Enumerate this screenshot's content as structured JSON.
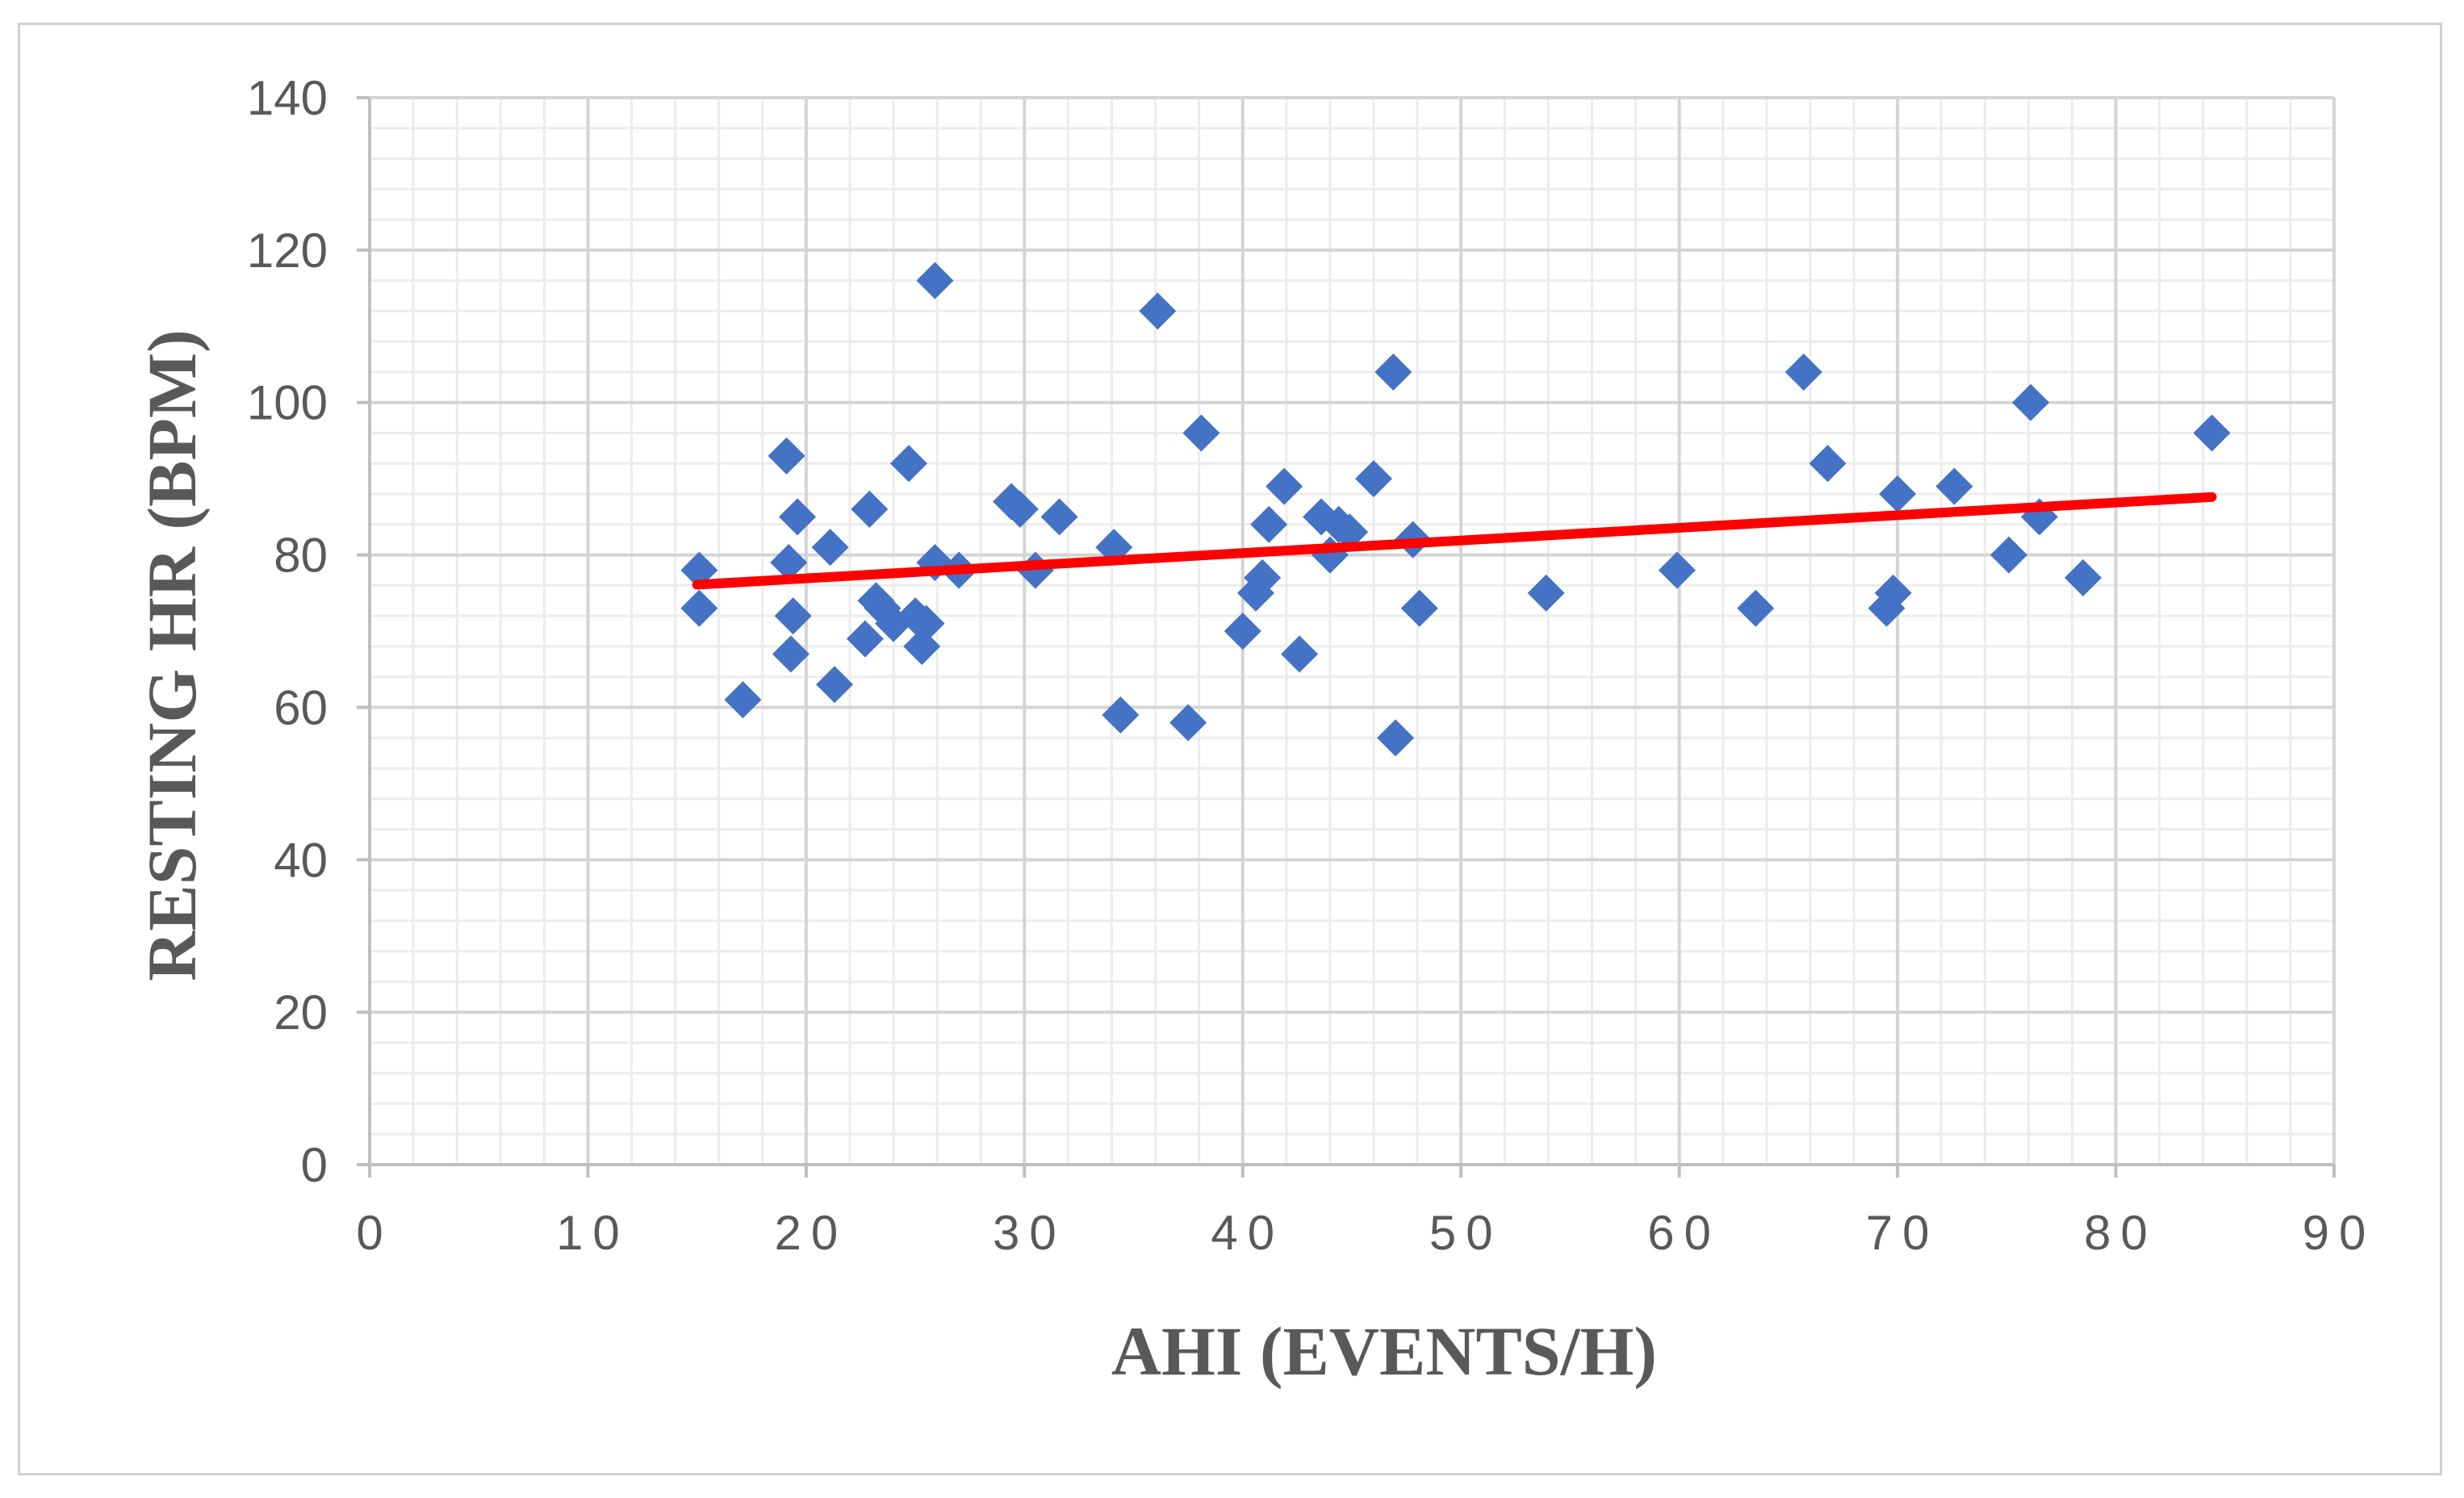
{
  "chart_data": {
    "type": "scatter",
    "title": "",
    "xlabel": "AHI (EVENTS/H)",
    "ylabel": "RESTING HR (BPM)",
    "xlim": [
      0,
      90
    ],
    "ylim": [
      0,
      140
    ],
    "xticks": [
      "0",
      "10",
      "20",
      "30",
      "40",
      "50",
      "60",
      "70",
      "80",
      "90"
    ],
    "yticks": [
      "0",
      "20",
      "40",
      "60",
      "80",
      "100",
      "120",
      "140"
    ],
    "grid": true,
    "legend": "none",
    "marker_color": "#4472C4",
    "trendline_color": "#FF0000",
    "series": [
      {
        "marker": "diamond",
        "points": [
          [
            15.1,
            78
          ],
          [
            15.1,
            73
          ],
          [
            17.1,
            61
          ],
          [
            19.1,
            93
          ],
          [
            19.2,
            79
          ],
          [
            19.3,
            67
          ],
          [
            19.4,
            72
          ],
          [
            19.6,
            85
          ],
          [
            21.1,
            81
          ],
          [
            21.3,
            63
          ],
          [
            22.9,
            86
          ],
          [
            22.7,
            69
          ],
          [
            23.2,
            74
          ],
          [
            23.5,
            73
          ],
          [
            24.0,
            71
          ],
          [
            24.7,
            92
          ],
          [
            25.0,
            72
          ],
          [
            25.3,
            68
          ],
          [
            25.5,
            71
          ],
          [
            25.9,
            116
          ],
          [
            25.9,
            79
          ],
          [
            27.0,
            78
          ],
          [
            29.4,
            87
          ],
          [
            29.8,
            86
          ],
          [
            30.5,
            78
          ],
          [
            31.6,
            85
          ],
          [
            34.1,
            81
          ],
          [
            34.4,
            59
          ],
          [
            36.1,
            112
          ],
          [
            37.5,
            58
          ],
          [
            38.1,
            96
          ],
          [
            40.0,
            70
          ],
          [
            40.6,
            75
          ],
          [
            40.9,
            77
          ],
          [
            41.2,
            84
          ],
          [
            41.9,
            89
          ],
          [
            42.6,
            67
          ],
          [
            43.6,
            85
          ],
          [
            44.0,
            80
          ],
          [
            44.4,
            84
          ],
          [
            44.9,
            83
          ],
          [
            46.0,
            90
          ],
          [
            46.9,
            104
          ],
          [
            47.0,
            56
          ],
          [
            47.8,
            82
          ],
          [
            48.1,
            73
          ],
          [
            53.9,
            75
          ],
          [
            59.9,
            78
          ],
          [
            63.5,
            73
          ],
          [
            65.7,
            104
          ],
          [
            66.8,
            92
          ],
          [
            69.5,
            73
          ],
          [
            69.8,
            75
          ],
          [
            70.0,
            88
          ],
          [
            72.6,
            89
          ],
          [
            75.1,
            80
          ],
          [
            76.1,
            100
          ],
          [
            76.5,
            85
          ],
          [
            78.5,
            77
          ],
          [
            84.4,
            96
          ]
        ]
      }
    ],
    "trendline": {
      "type": "linear",
      "x": [
        15,
        84.4
      ],
      "y": [
        76.1,
        87.6
      ]
    }
  }
}
